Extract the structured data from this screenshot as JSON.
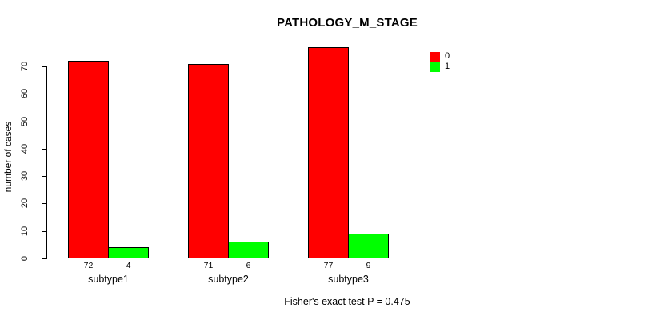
{
  "chart_data": {
    "type": "bar",
    "title": "PATHOLOGY_M_STAGE",
    "xlabel": "",
    "ylabel": "number of cases",
    "categories": [
      "subtype1",
      "subtype2",
      "subtype3"
    ],
    "series": [
      {
        "name": "0",
        "color": "#ff0000",
        "values": [
          72,
          71,
          77
        ]
      },
      {
        "name": "1",
        "color": "#00ff00",
        "values": [
          4,
          6,
          9
        ]
      }
    ],
    "ylim": [
      0,
      70
    ],
    "yticks": [
      0,
      10,
      20,
      30,
      40,
      50,
      60,
      70
    ],
    "grid": false,
    "bar_value_labels_shown": true,
    "legend": {
      "position": "top-right",
      "entries": [
        {
          "label": "0",
          "color": "#ff0000"
        },
        {
          "label": "1",
          "color": "#00ff00"
        }
      ]
    },
    "annotation": "Fisher's exact test P = 0.475"
  },
  "colors": {
    "background": "#ffffff",
    "axis": "#000000",
    "bar_border": "#000000",
    "text": "#000000"
  }
}
